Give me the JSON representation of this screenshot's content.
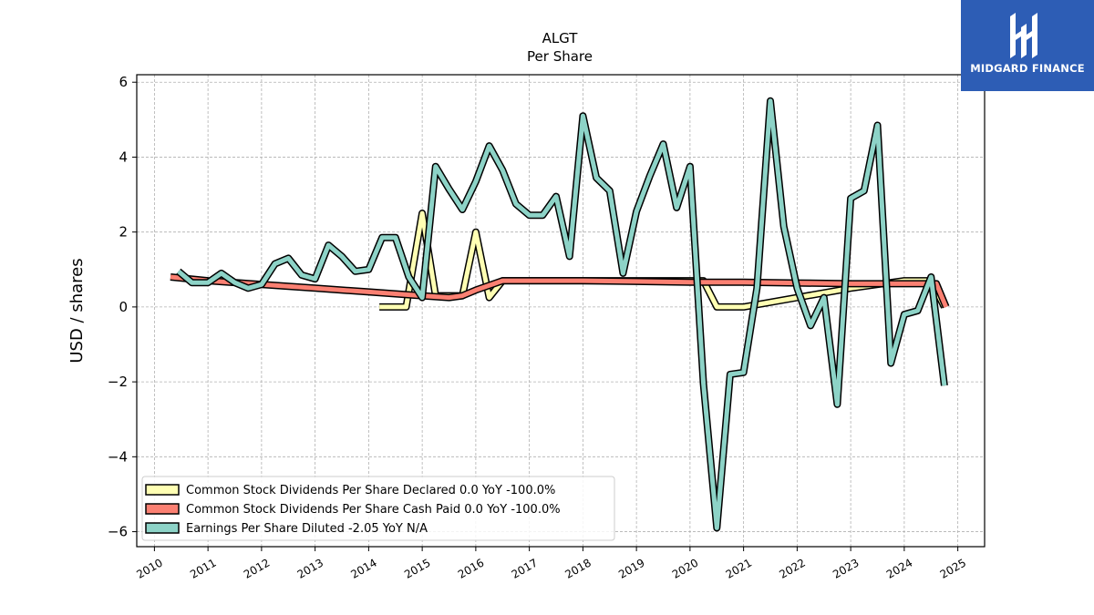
{
  "brand": {
    "name": "MIDGARD FINANCE",
    "icon": "midgard-logo-icon",
    "color": "#2d5db5"
  },
  "chart_data": {
    "type": "line",
    "title": "ALGT",
    "subtitle": "Per  Share",
    "xlabel": "",
    "ylabel": "USD / shares",
    "xlim": [
      2009.67,
      2025.5
    ],
    "ylim": [
      -6.4,
      6.2
    ],
    "yticks": [
      -6,
      -4,
      -2,
      0,
      2,
      4,
      6
    ],
    "ytick_labels": [
      "−6",
      "−4",
      "−2",
      "0",
      "2",
      "4",
      "6"
    ],
    "xticks": [
      2010,
      2011,
      2012,
      2013,
      2014,
      2015,
      2016,
      2017,
      2018,
      2019,
      2020,
      2021,
      2022,
      2023,
      2024,
      2025
    ],
    "xtick_labels": [
      "2010",
      "2011",
      "2012",
      "2013",
      "2014",
      "2015",
      "2016",
      "2017",
      "2018",
      "2019",
      "2020",
      "2021",
      "2022",
      "2023",
      "2024",
      "2025"
    ],
    "grid": true,
    "legend_position": "lower-left",
    "series": [
      {
        "name": "Common Stock Dividends Per Share Declared  0.0 YoY -100.0%",
        "color": "#ffffb3",
        "points": [
          [
            2014.2,
            0.0
          ],
          [
            2014.7,
            0.0
          ],
          [
            2015.0,
            2.5
          ],
          [
            2015.25,
            0.3
          ],
          [
            2015.5,
            0.3
          ],
          [
            2015.75,
            0.3
          ],
          [
            2016.0,
            2.0
          ],
          [
            2016.25,
            0.25
          ],
          [
            2016.5,
            0.7
          ],
          [
            2017.0,
            0.7
          ],
          [
            2018.0,
            0.7
          ],
          [
            2019.0,
            0.7
          ],
          [
            2020.0,
            0.7
          ],
          [
            2020.25,
            0.7
          ],
          [
            2020.5,
            0.0
          ],
          [
            2021.0,
            0.0
          ],
          [
            2022.0,
            0.25
          ],
          [
            2023.0,
            0.5
          ],
          [
            2024.0,
            0.7
          ],
          [
            2024.5,
            0.7
          ],
          [
            2024.75,
            0.0
          ]
        ]
      },
      {
        "name": "Common Stock Dividends Per Share Cash Paid  0.0 YoY -100.0%",
        "color": "#fb8072",
        "points": [
          [
            2010.3,
            0.8
          ],
          [
            2011.0,
            0.7
          ],
          [
            2012.0,
            0.6
          ],
          [
            2013.0,
            0.5
          ],
          [
            2014.0,
            0.4
          ],
          [
            2015.0,
            0.3
          ],
          [
            2015.5,
            0.25
          ],
          [
            2015.75,
            0.3
          ],
          [
            2016.0,
            0.45
          ],
          [
            2016.5,
            0.7
          ],
          [
            2017.0,
            0.7
          ],
          [
            2018.0,
            0.7
          ],
          [
            2019.0,
            0.68
          ],
          [
            2020.0,
            0.66
          ],
          [
            2021.0,
            0.66
          ],
          [
            2022.0,
            0.64
          ],
          [
            2023.0,
            0.62
          ],
          [
            2024.0,
            0.62
          ],
          [
            2024.6,
            0.62
          ],
          [
            2024.78,
            0.0
          ]
        ]
      },
      {
        "name": "Earnings Per Share Diluted  -2.05 YoY N/A",
        "color": "#8dd3c7",
        "points": [
          [
            2010.45,
            0.95
          ],
          [
            2010.7,
            0.65
          ],
          [
            2011.0,
            0.65
          ],
          [
            2011.25,
            0.9
          ],
          [
            2011.5,
            0.65
          ],
          [
            2011.75,
            0.5
          ],
          [
            2012.0,
            0.6
          ],
          [
            2012.25,
            1.15
          ],
          [
            2012.5,
            1.3
          ],
          [
            2012.75,
            0.85
          ],
          [
            2013.0,
            0.75
          ],
          [
            2013.25,
            1.65
          ],
          [
            2013.5,
            1.35
          ],
          [
            2013.75,
            0.95
          ],
          [
            2014.0,
            1.0
          ],
          [
            2014.25,
            1.85
          ],
          [
            2014.5,
            1.85
          ],
          [
            2014.75,
            0.8
          ],
          [
            2015.0,
            0.25
          ],
          [
            2015.25,
            3.75
          ],
          [
            2015.5,
            3.15
          ],
          [
            2015.75,
            2.6
          ],
          [
            2016.0,
            3.35
          ],
          [
            2016.25,
            4.3
          ],
          [
            2016.5,
            3.65
          ],
          [
            2016.75,
            2.75
          ],
          [
            2017.0,
            2.45
          ],
          [
            2017.25,
            2.45
          ],
          [
            2017.5,
            2.95
          ],
          [
            2017.75,
            1.35
          ],
          [
            2018.0,
            5.1
          ],
          [
            2018.25,
            3.45
          ],
          [
            2018.5,
            3.1
          ],
          [
            2018.75,
            0.9
          ],
          [
            2019.0,
            2.55
          ],
          [
            2019.25,
            3.5
          ],
          [
            2019.5,
            4.35
          ],
          [
            2019.75,
            2.65
          ],
          [
            2020.0,
            3.75
          ],
          [
            2020.25,
            -2.05
          ],
          [
            2020.5,
            -5.9
          ],
          [
            2020.75,
            -1.8
          ],
          [
            2021.0,
            -1.75
          ],
          [
            2021.25,
            0.5
          ],
          [
            2021.5,
            5.5
          ],
          [
            2021.75,
            2.15
          ],
          [
            2022.0,
            0.5
          ],
          [
            2022.25,
            -0.5
          ],
          [
            2022.5,
            0.25
          ],
          [
            2022.75,
            -2.6
          ],
          [
            2023.0,
            2.9
          ],
          [
            2023.25,
            3.1
          ],
          [
            2023.5,
            4.85
          ],
          [
            2023.75,
            -1.5
          ],
          [
            2024.0,
            -0.2
          ],
          [
            2024.25,
            -0.1
          ],
          [
            2024.5,
            0.8
          ],
          [
            2024.75,
            -2.1
          ]
        ]
      }
    ]
  }
}
